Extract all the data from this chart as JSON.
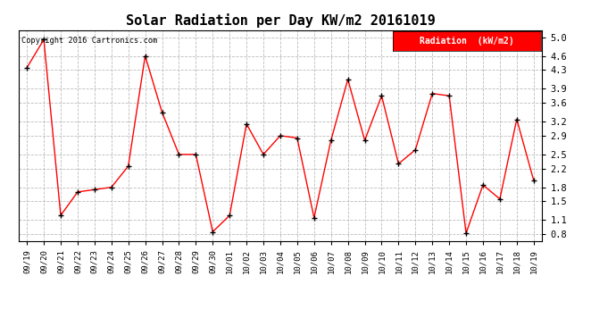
{
  "title": "Solar Radiation per Day KW/m2 20161019",
  "copyright_text": "Copyright 2016 Cartronics.com",
  "legend_label": "Radiation  (kW/m2)",
  "dates": [
    "09/19",
    "09/20",
    "09/21",
    "09/22",
    "09/23",
    "09/24",
    "09/25",
    "09/26",
    "09/27",
    "09/28",
    "09/29",
    "09/30",
    "10/01",
    "10/02",
    "10/03",
    "10/04",
    "10/05",
    "10/06",
    "10/07",
    "10/08",
    "10/09",
    "10/10",
    "10/11",
    "10/12",
    "10/13",
    "10/14",
    "10/15",
    "10/16",
    "10/17",
    "10/18",
    "10/19"
  ],
  "values": [
    4.35,
    4.95,
    1.2,
    1.7,
    1.75,
    1.8,
    2.25,
    4.6,
    3.4,
    2.5,
    2.5,
    0.85,
    1.2,
    3.15,
    2.5,
    2.9,
    2.85,
    1.15,
    2.8,
    4.1,
    2.8,
    3.75,
    2.3,
    2.6,
    3.8,
    3.75,
    0.82,
    1.85,
    1.55,
    3.25,
    1.95
  ],
  "line_color": "red",
  "marker_color": "black",
  "bg_color": "white",
  "plot_bg_color": "white",
  "grid_color": "#bbbbbb",
  "title_fontsize": 11,
  "yticks": [
    0.8,
    1.1,
    1.5,
    1.8,
    2.2,
    2.5,
    2.9,
    3.2,
    3.6,
    3.9,
    4.3,
    4.6,
    5.0
  ],
  "ylim": [
    0.65,
    5.15
  ],
  "legend_bg": "red",
  "legend_text_color": "white"
}
